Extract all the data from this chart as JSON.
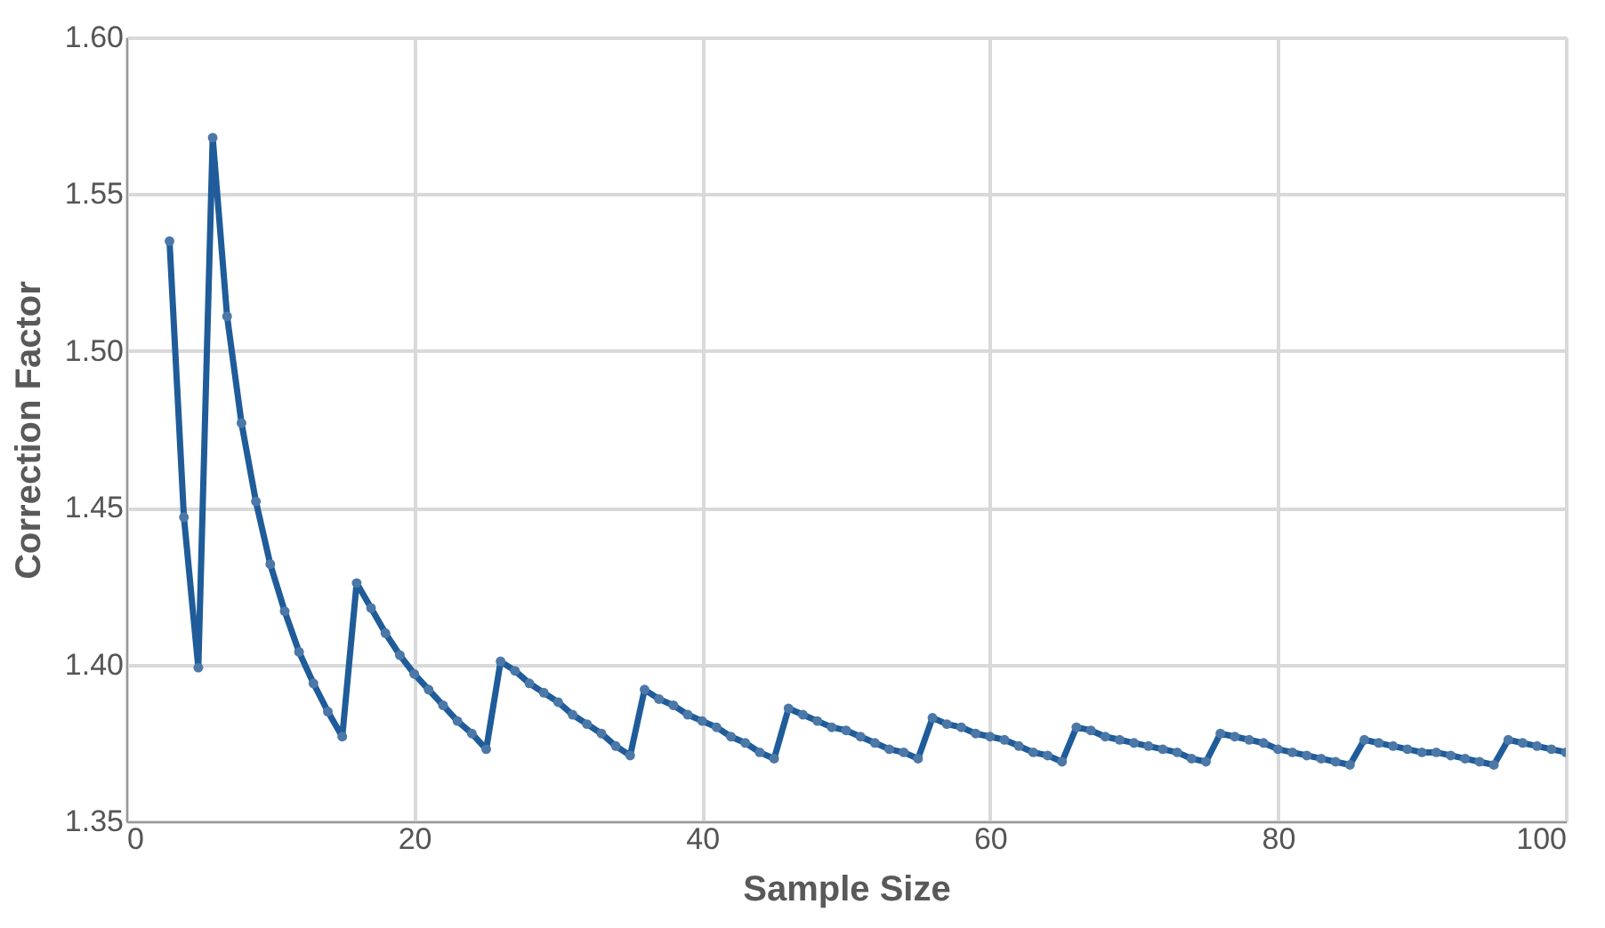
{
  "chart_data": {
    "type": "line",
    "xlabel": "Sample Size",
    "ylabel": "Correction Factor",
    "xlim": [
      0,
      100
    ],
    "xticks": [
      0,
      20,
      40,
      60,
      80,
      100
    ],
    "ylim": [
      1.35,
      1.6
    ],
    "yticks": [
      {
        "value": 1.35,
        "label": "1.35"
      },
      {
        "value": 1.4,
        "label": "1.40"
      },
      {
        "value": 1.45,
        "label": "1.45"
      },
      {
        "value": 1.5,
        "label": "1.50"
      },
      {
        "value": 1.55,
        "label": "1.55"
      },
      {
        "value": 1.6,
        "label": "1.60"
      }
    ],
    "grid": true,
    "marker": "circle",
    "line_style": "solid",
    "x": [
      3,
      4,
      5,
      6,
      7,
      8,
      9,
      10,
      11,
      12,
      13,
      14,
      15,
      16,
      17,
      18,
      19,
      20,
      21,
      22,
      23,
      24,
      25,
      26,
      27,
      28,
      29,
      30,
      31,
      32,
      33,
      34,
      35,
      36,
      37,
      38,
      39,
      40,
      41,
      42,
      43,
      44,
      45,
      46,
      47,
      48,
      49,
      50,
      51,
      52,
      53,
      54,
      55,
      56,
      57,
      58,
      59,
      60,
      61,
      62,
      63,
      64,
      65,
      66,
      67,
      68,
      69,
      70,
      71,
      72,
      73,
      74,
      75,
      76,
      77,
      78,
      79,
      80,
      81,
      82,
      83,
      84,
      85,
      86,
      87,
      88,
      89,
      90,
      91,
      92,
      93,
      94,
      95,
      96,
      97,
      98,
      99,
      100
    ],
    "series": [
      {
        "color": "#1f5c99",
        "values": [
          1.535,
          1.447,
          1.399,
          1.568,
          1.511,
          1.477,
          1.452,
          1.432,
          1.417,
          1.404,
          1.394,
          1.385,
          1.377,
          1.426,
          1.418,
          1.41,
          1.403,
          1.397,
          1.392,
          1.387,
          1.382,
          1.378,
          1.373,
          1.401,
          1.398,
          1.394,
          1.391,
          1.388,
          1.384,
          1.381,
          1.378,
          1.374,
          1.371,
          1.392,
          1.389,
          1.387,
          1.384,
          1.382,
          1.38,
          1.377,
          1.375,
          1.372,
          1.37,
          1.386,
          1.384,
          1.382,
          1.38,
          1.379,
          1.377,
          1.375,
          1.373,
          1.372,
          1.37,
          1.383,
          1.381,
          1.38,
          1.378,
          1.377,
          1.376,
          1.374,
          1.372,
          1.371,
          1.369,
          1.38,
          1.379,
          1.377,
          1.376,
          1.375,
          1.374,
          1.373,
          1.372,
          1.37,
          1.369,
          1.378,
          1.377,
          1.376,
          1.375,
          1.373,
          1.372,
          1.371,
          1.37,
          1.369,
          1.368,
          1.376,
          1.375,
          1.374,
          1.373,
          1.372,
          1.372,
          1.371,
          1.37,
          1.369,
          1.368,
          1.376,
          1.375,
          1.374,
          1.373,
          1.372
        ]
      }
    ]
  }
}
